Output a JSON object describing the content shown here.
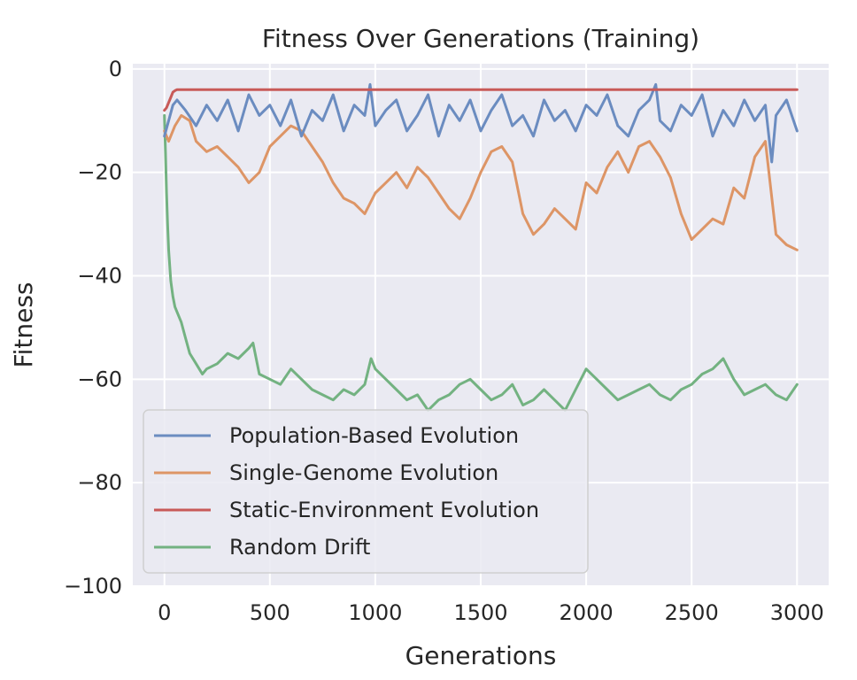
{
  "chart_data": {
    "type": "line",
    "title": "Fitness Over Generations (Training)",
    "xlabel": "Generations",
    "ylabel": "Fitness",
    "xlim": [
      -150,
      3150
    ],
    "ylim": [
      -100,
      1
    ],
    "xticks": [
      0,
      500,
      1000,
      1500,
      2000,
      2500,
      3000
    ],
    "yticks": [
      0,
      -20,
      -40,
      -60,
      -80,
      -100
    ],
    "xtick_labels": [
      "0",
      "500",
      "1000",
      "1500",
      "2000",
      "2500",
      "3000"
    ],
    "ytick_labels": [
      "0",
      "−20",
      "−40",
      "−60",
      "−80",
      "−100"
    ],
    "grid": true,
    "legend_position": "lower-left",
    "series": [
      {
        "name": "Population-Based Evolution",
        "color": "#6b8cc0",
        "x": [
          0,
          20,
          40,
          60,
          100,
          150,
          200,
          250,
          300,
          350,
          400,
          450,
          500,
          550,
          600,
          650,
          700,
          750,
          800,
          850,
          900,
          950,
          975,
          1000,
          1050,
          1100,
          1150,
          1200,
          1250,
          1300,
          1350,
          1400,
          1450,
          1500,
          1550,
          1600,
          1650,
          1700,
          1750,
          1800,
          1850,
          1900,
          1950,
          2000,
          2050,
          2100,
          2150,
          2200,
          2250,
          2300,
          2330,
          2350,
          2400,
          2450,
          2500,
          2550,
          2600,
          2650,
          2700,
          2750,
          2800,
          2850,
          2880,
          2900,
          2950,
          3000
        ],
        "y": [
          -13,
          -10,
          -7,
          -6,
          -8,
          -11,
          -7,
          -10,
          -6,
          -12,
          -5,
          -9,
          -7,
          -11,
          -6,
          -13,
          -8,
          -10,
          -5,
          -12,
          -7,
          -9,
          -3,
          -11,
          -8,
          -6,
          -12,
          -9,
          -5,
          -13,
          -7,
          -10,
          -6,
          -12,
          -8,
          -5,
          -11,
          -9,
          -13,
          -6,
          -10,
          -8,
          -12,
          -7,
          -9,
          -5,
          -11,
          -13,
          -8,
          -6,
          -3,
          -10,
          -12,
          -7,
          -9,
          -5,
          -13,
          -8,
          -11,
          -6,
          -10,
          -7,
          -18,
          -9,
          -6,
          -12
        ]
      },
      {
        "name": "Single-Genome Evolution",
        "color": "#dd9566",
        "x": [
          0,
          20,
          50,
          80,
          120,
          150,
          200,
          250,
          300,
          350,
          400,
          450,
          500,
          550,
          600,
          650,
          700,
          750,
          800,
          850,
          900,
          950,
          1000,
          1050,
          1100,
          1150,
          1200,
          1250,
          1300,
          1350,
          1400,
          1450,
          1500,
          1550,
          1600,
          1650,
          1700,
          1750,
          1800,
          1850,
          1900,
          1950,
          2000,
          2050,
          2100,
          2150,
          2200,
          2250,
          2300,
          2350,
          2400,
          2450,
          2500,
          2550,
          2600,
          2650,
          2700,
          2750,
          2800,
          2850,
          2900,
          2950,
          3000
        ],
        "y": [
          -12,
          -14,
          -11,
          -9,
          -10,
          -14,
          -16,
          -15,
          -17,
          -19,
          -22,
          -20,
          -15,
          -13,
          -11,
          -12,
          -15,
          -18,
          -22,
          -25,
          -26,
          -28,
          -24,
          -22,
          -20,
          -23,
          -19,
          -21,
          -24,
          -27,
          -29,
          -25,
          -20,
          -16,
          -15,
          -18,
          -28,
          -32,
          -30,
          -27,
          -29,
          -31,
          -22,
          -24,
          -19,
          -16,
          -20,
          -15,
          -14,
          -17,
          -21,
          -28,
          -33,
          -31,
          -29,
          -30,
          -23,
          -25,
          -17,
          -14,
          -32,
          -34,
          -35
        ]
      },
      {
        "name": "Static-Environment Evolution",
        "color": "#c85a58",
        "x": [
          0,
          10,
          20,
          30,
          40,
          50,
          60,
          100,
          500,
          1000,
          1500,
          2000,
          2500,
          3000
        ],
        "y": [
          -8,
          -7.5,
          -6.5,
          -5.5,
          -4.5,
          -4.2,
          -4,
          -4,
          -4,
          -4,
          -4,
          -4,
          -4,
          -4
        ]
      },
      {
        "name": "Random Drift",
        "color": "#73b281",
        "x": [
          0,
          5,
          10,
          15,
          20,
          25,
          30,
          40,
          50,
          60,
          80,
          100,
          120,
          150,
          180,
          200,
          250,
          300,
          350,
          400,
          420,
          450,
          500,
          550,
          600,
          650,
          700,
          750,
          800,
          850,
          900,
          950,
          980,
          1000,
          1050,
          1100,
          1150,
          1200,
          1250,
          1300,
          1350,
          1400,
          1450,
          1500,
          1550,
          1600,
          1650,
          1700,
          1750,
          1800,
          1850,
          1900,
          1950,
          2000,
          2050,
          2100,
          2150,
          2200,
          2250,
          2300,
          2350,
          2400,
          2450,
          2500,
          2550,
          2600,
          2650,
          2700,
          2750,
          2800,
          2850,
          2900,
          2950,
          3000
        ],
        "y": [
          -9,
          -16,
          -24,
          -30,
          -35,
          -38,
          -41,
          -44,
          -46,
          -47,
          -49,
          -52,
          -55,
          -57,
          -59,
          -58,
          -57,
          -55,
          -56,
          -54,
          -53,
          -59,
          -60,
          -61,
          -58,
          -60,
          -62,
          -63,
          -64,
          -62,
          -63,
          -61,
          -56,
          -58,
          -60,
          -62,
          -64,
          -63,
          -66,
          -64,
          -63,
          -61,
          -60,
          -62,
          -64,
          -63,
          -61,
          -65,
          -64,
          -62,
          -64,
          -66,
          -62,
          -58,
          -60,
          -62,
          -64,
          -63,
          -62,
          -61,
          -63,
          -64,
          -62,
          -61,
          -59,
          -58,
          -56,
          -60,
          -63,
          -62,
          -61,
          -63,
          -64,
          -61
        ]
      }
    ]
  }
}
